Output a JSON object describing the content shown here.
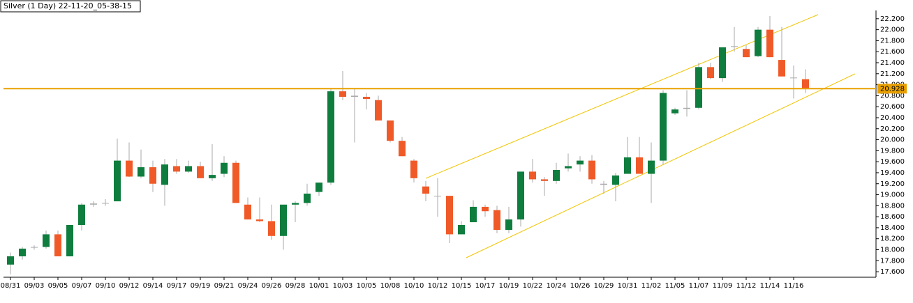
{
  "chart_data": {
    "type": "candlestick",
    "title": "Silver (1 Day) 22-11-20_05-38-15",
    "categories": [
      "08/31",
      null,
      "09/03",
      null,
      "09/05",
      null,
      "09/07",
      null,
      "09/10",
      null,
      "09/12",
      null,
      "09/14",
      null,
      "09/17",
      null,
      "09/19",
      null,
      "09/21",
      null,
      "09/24",
      null,
      "09/26",
      null,
      "09/28",
      null,
      "10/01",
      null,
      "10/03",
      null,
      "10/05",
      null,
      "10/08",
      null,
      "10/10",
      null,
      "10/12",
      null,
      "10/15",
      null,
      "10/17",
      null,
      "10/19",
      null,
      "10/22",
      null,
      "10/24",
      null,
      "10/26",
      null,
      "10/29",
      null,
      "10/31",
      null,
      "11/02",
      null,
      "11/05",
      null,
      "11/07",
      null,
      "11/09",
      null,
      "11/12",
      null,
      "11/14",
      null,
      "11/16",
      null
    ],
    "open": [
      17.73,
      17.88,
      18.04,
      18.05,
      18.28,
      17.88,
      18.45,
      18.82,
      18.84,
      18.88,
      19.62,
      19.33,
      19.5,
      19.18,
      19.52,
      19.42,
      19.52,
      19.3,
      19.38,
      19.58,
      18.82,
      18.55,
      18.52,
      18.25,
      18.82,
      18.85,
      19.05,
      19.22,
      20.88,
      20.8,
      20.78,
      20.72,
      20.35,
      19.98,
      19.62,
      19.15,
      18.98,
      18.98,
      18.28,
      18.5,
      18.78,
      18.72,
      18.36,
      18.55,
      19.42,
      19.28,
      19.25,
      19.48,
      19.55,
      19.62,
      19.2,
      19.18,
      19.38,
      19.68,
      19.38,
      19.62,
      20.48,
      20.58,
      20.58,
      21.32,
      21.12,
      21.7,
      21.65,
      21.52,
      22.0,
      21.45,
      21.13,
      21.1
    ],
    "high": [
      17.95,
      18.05,
      18.08,
      18.35,
      18.35,
      18.45,
      18.85,
      18.88,
      18.92,
      20.02,
      19.95,
      19.82,
      19.62,
      19.65,
      19.65,
      19.62,
      19.6,
      19.92,
      19.7,
      19.62,
      18.95,
      18.95,
      18.82,
      18.8,
      18.88,
      19.2,
      19.22,
      20.92,
      21.25,
      20.92,
      20.85,
      20.8,
      20.35,
      20.05,
      19.65,
      19.25,
      19.3,
      18.98,
      18.52,
      18.9,
      18.82,
      18.8,
      18.78,
      19.42,
      19.65,
      19.32,
      19.58,
      19.75,
      19.7,
      19.72,
      19.25,
      19.4,
      20.05,
      20.05,
      19.95,
      20.9,
      20.58,
      20.9,
      21.4,
      21.4,
      21.68,
      22.05,
      21.72,
      22.05,
      22.25,
      22.05,
      21.35,
      21.28
    ],
    "low": [
      17.55,
      17.82,
      18.0,
      18.02,
      17.88,
      17.88,
      18.35,
      18.78,
      18.8,
      18.88,
      19.32,
      19.3,
      19.05,
      18.8,
      19.38,
      19.4,
      19.3,
      19.25,
      19.32,
      18.85,
      18.55,
      18.5,
      18.18,
      18.0,
      18.5,
      18.8,
      18.98,
      19.18,
      20.72,
      19.95,
      20.55,
      20.38,
      19.95,
      19.7,
      19.22,
      18.88,
      18.6,
      18.12,
      18.28,
      18.5,
      18.6,
      18.3,
      18.3,
      18.42,
      19.22,
      18.98,
      19.2,
      19.42,
      19.42,
      19.2,
      19.02,
      18.88,
      19.38,
      19.4,
      18.85,
      19.55,
      20.45,
      20.42,
      20.55,
      21.1,
      21.05,
      21.6,
      21.5,
      21.5,
      21.5,
      21.15,
      20.75,
      20.85
    ],
    "close": [
      17.88,
      18.02,
      18.05,
      18.28,
      17.88,
      18.45,
      18.82,
      18.84,
      18.85,
      19.62,
      19.33,
      19.5,
      19.2,
      19.55,
      19.42,
      19.52,
      19.3,
      19.36,
      19.58,
      18.85,
      18.55,
      18.52,
      18.25,
      18.82,
      18.85,
      19.02,
      19.22,
      20.88,
      20.78,
      20.78,
      20.74,
      20.35,
      19.98,
      19.7,
      19.3,
      19.02,
      18.98,
      18.28,
      18.45,
      18.78,
      18.7,
      18.36,
      18.55,
      19.42,
      19.28,
      19.25,
      19.45,
      19.52,
      19.62,
      19.28,
      19.18,
      19.35,
      19.68,
      19.38,
      19.62,
      20.85,
      20.55,
      20.56,
      21.32,
      21.12,
      21.68,
      21.7,
      21.5,
      22.0,
      21.5,
      21.15,
      21.12,
      20.92
    ],
    "up_color": "#0e7d3e",
    "down_color": "#f05a28",
    "price_line": 20.928,
    "price_line_color": "#e8a000",
    "ylim": [
      17.5,
      22.35
    ],
    "yticks": [
      {
        "value": 17.6,
        "label": "17.600"
      },
      {
        "value": 17.8,
        "label": "17.800"
      },
      {
        "value": 18.0,
        "label": "18.000"
      },
      {
        "value": 18.2,
        "label": "18.200"
      },
      {
        "value": 18.4,
        "label": "18.400"
      },
      {
        "value": 18.6,
        "label": "18.600"
      },
      {
        "value": 18.8,
        "label": "18.800"
      },
      {
        "value": 19.0,
        "label": "19.000"
      },
      {
        "value": 19.2,
        "label": "19.200"
      },
      {
        "value": 19.4,
        "label": "19.400"
      },
      {
        "value": 19.6,
        "label": "19.600"
      },
      {
        "value": 19.8,
        "label": "19.800"
      },
      {
        "value": 20.0,
        "label": "20.000"
      },
      {
        "value": 20.2,
        "label": "20.200"
      },
      {
        "value": 20.4,
        "label": "20.400"
      },
      {
        "value": 20.6,
        "label": "20.600"
      },
      {
        "value": 20.8,
        "label": "20.800"
      },
      {
        "value": 21.0,
        "label": "21.000"
      },
      {
        "value": 21.2,
        "label": "21.200"
      },
      {
        "value": 21.4,
        "label": "21.400"
      },
      {
        "value": 21.6,
        "label": "21.600"
      },
      {
        "value": 21.8,
        "label": "21.800"
      },
      {
        "value": 22.0,
        "label": "22.000"
      },
      {
        "value": 22.2,
        "label": "22.200"
      }
    ]
  }
}
